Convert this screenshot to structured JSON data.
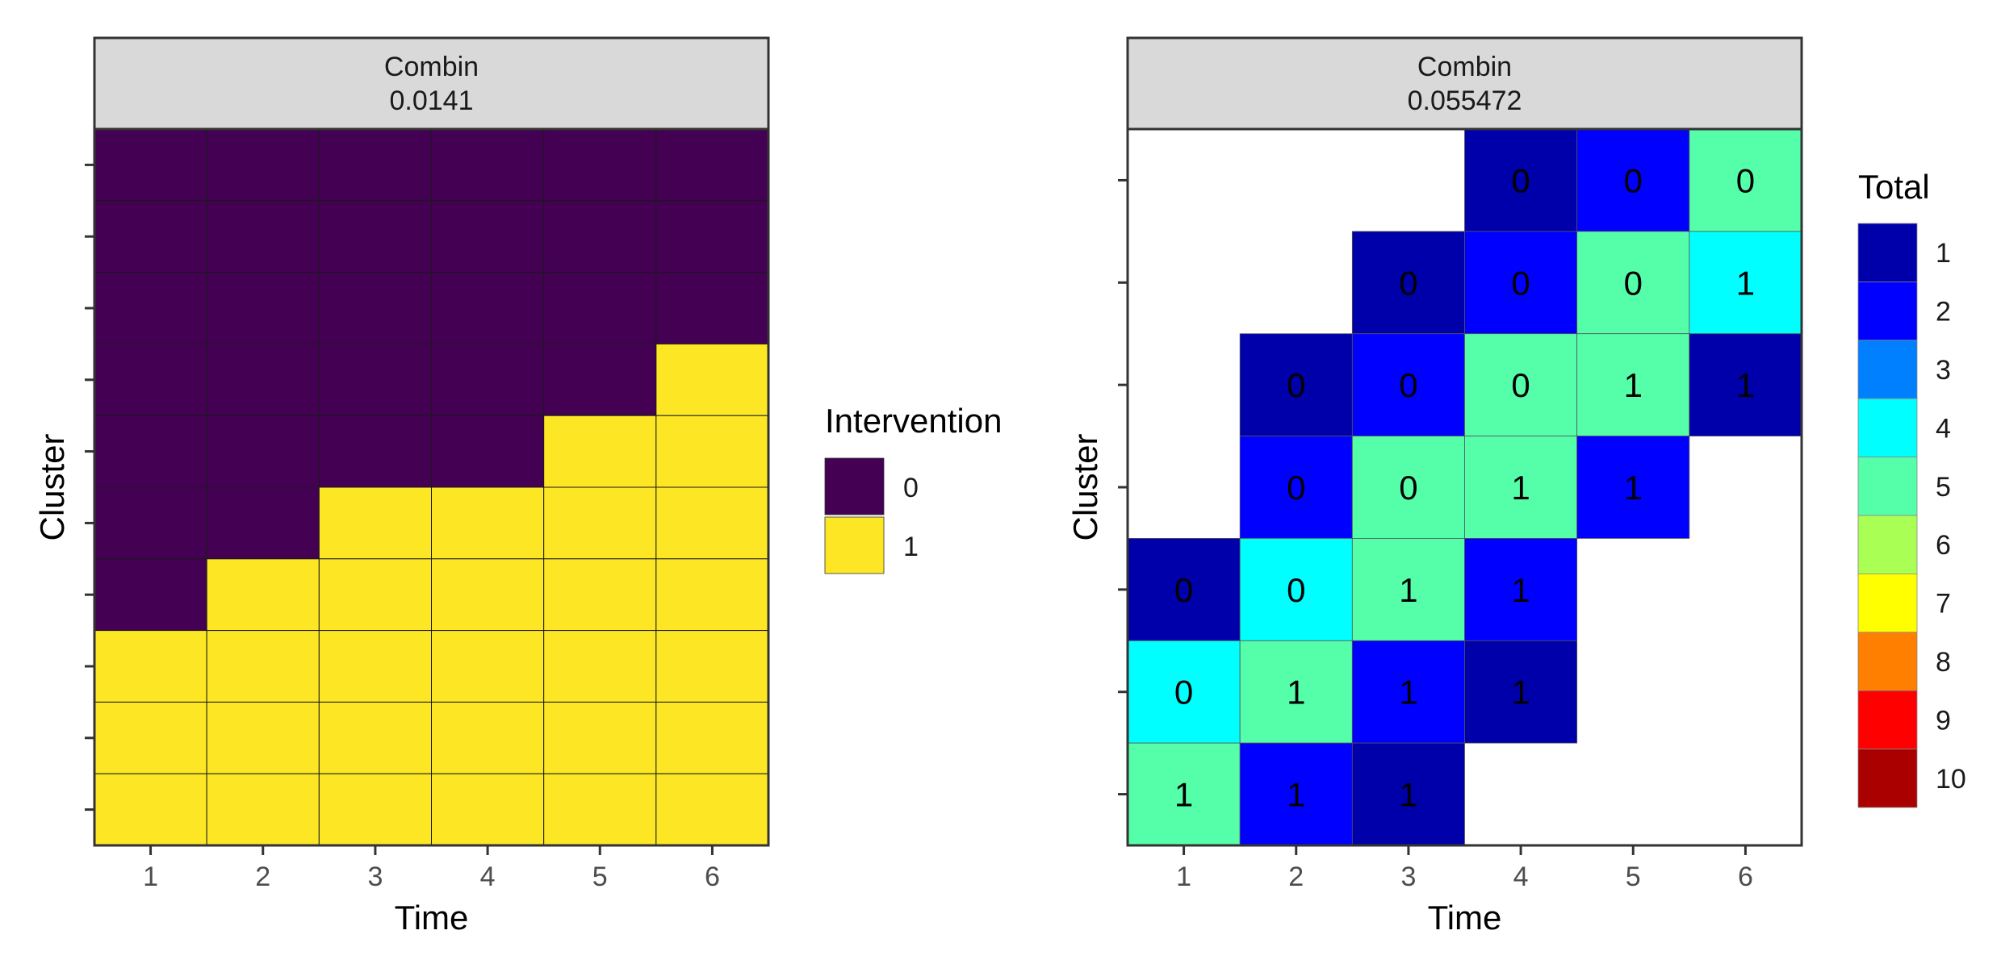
{
  "chart_data": [
    {
      "type": "heatmap",
      "strip_title_1": "Combin",
      "strip_title_2": "0.0141",
      "xlabel": "Time",
      "ylabel": "Cluster",
      "x_ticks": [
        "1",
        "2",
        "3",
        "4",
        "5",
        "6"
      ],
      "n_rows": 10,
      "legend": {
        "title": "Intervention",
        "placement": "right",
        "entries": [
          {
            "label": "0",
            "color": "#440154"
          },
          {
            "label": "1",
            "color": "#FDE725"
          }
        ]
      },
      "rows_top_to_bottom": [
        [
          0,
          0,
          0,
          0,
          0,
          0
        ],
        [
          0,
          0,
          0,
          0,
          0,
          0
        ],
        [
          0,
          0,
          0,
          0,
          0,
          0
        ],
        [
          0,
          0,
          0,
          0,
          0,
          1
        ],
        [
          0,
          0,
          0,
          0,
          1,
          1
        ],
        [
          0,
          0,
          1,
          1,
          1,
          1
        ],
        [
          0,
          1,
          1,
          1,
          1,
          1
        ],
        [
          1,
          1,
          1,
          1,
          1,
          1
        ],
        [
          1,
          1,
          1,
          1,
          1,
          1
        ],
        [
          1,
          1,
          1,
          1,
          1,
          1
        ]
      ]
    },
    {
      "type": "heatmap",
      "strip_title_1": "Combin",
      "strip_title_2": "0.055472",
      "xlabel": "Time",
      "ylabel": "Cluster",
      "x_ticks": [
        "1",
        "2",
        "3",
        "4",
        "5",
        "6"
      ],
      "n_rows": 7,
      "legend": {
        "title": "Total",
        "placement": "right",
        "entries": [
          {
            "label": "1",
            "color": "#0000AA"
          },
          {
            "label": "2",
            "color": "#0000FF"
          },
          {
            "label": "3",
            "color": "#0080FF"
          },
          {
            "label": "4",
            "color": "#00FFFF"
          },
          {
            "label": "5",
            "color": "#55FFAA"
          },
          {
            "label": "6",
            "color": "#AAFF55"
          },
          {
            "label": "7",
            "color": "#FFFF00"
          },
          {
            "label": "8",
            "color": "#FF8000"
          },
          {
            "label": "9",
            "color": "#FF0000"
          },
          {
            "label": "10",
            "color": "#AA0000"
          }
        ]
      },
      "cells": [
        {
          "row": 1,
          "time": 4,
          "total": 1,
          "intervention": "0"
        },
        {
          "row": 1,
          "time": 5,
          "total": 2,
          "intervention": "0"
        },
        {
          "row": 1,
          "time": 6,
          "total": 5,
          "intervention": "0"
        },
        {
          "row": 2,
          "time": 3,
          "total": 1,
          "intervention": "0"
        },
        {
          "row": 2,
          "time": 4,
          "total": 2,
          "intervention": "0"
        },
        {
          "row": 2,
          "time": 5,
          "total": 5,
          "intervention": "0"
        },
        {
          "row": 2,
          "time": 6,
          "total": 4,
          "intervention": "1"
        },
        {
          "row": 3,
          "time": 2,
          "total": 1,
          "intervention": "0"
        },
        {
          "row": 3,
          "time": 3,
          "total": 2,
          "intervention": "0"
        },
        {
          "row": 3,
          "time": 4,
          "total": 5,
          "intervention": "0"
        },
        {
          "row": 3,
          "time": 5,
          "total": 5,
          "intervention": "1"
        },
        {
          "row": 3,
          "time": 6,
          "total": 1,
          "intervention": "1"
        },
        {
          "row": 4,
          "time": 2,
          "total": 2,
          "intervention": "0"
        },
        {
          "row": 4,
          "time": 3,
          "total": 5,
          "intervention": "0"
        },
        {
          "row": 4,
          "time": 4,
          "total": 5,
          "intervention": "1"
        },
        {
          "row": 4,
          "time": 5,
          "total": 2,
          "intervention": "1"
        },
        {
          "row": 5,
          "time": 1,
          "total": 1,
          "intervention": "0"
        },
        {
          "row": 5,
          "time": 2,
          "total": 4,
          "intervention": "0"
        },
        {
          "row": 5,
          "time": 3,
          "total": 5,
          "intervention": "1"
        },
        {
          "row": 5,
          "time": 4,
          "total": 2,
          "intervention": "1"
        },
        {
          "row": 6,
          "time": 1,
          "total": 4,
          "intervention": "0"
        },
        {
          "row": 6,
          "time": 2,
          "total": 5,
          "intervention": "1"
        },
        {
          "row": 6,
          "time": 3,
          "total": 2,
          "intervention": "1"
        },
        {
          "row": 6,
          "time": 4,
          "total": 1,
          "intervention": "1"
        },
        {
          "row": 7,
          "time": 1,
          "total": 5,
          "intervention": "1"
        },
        {
          "row": 7,
          "time": 2,
          "total": 2,
          "intervention": "1"
        },
        {
          "row": 7,
          "time": 3,
          "total": 1,
          "intervention": "1"
        }
      ]
    }
  ]
}
